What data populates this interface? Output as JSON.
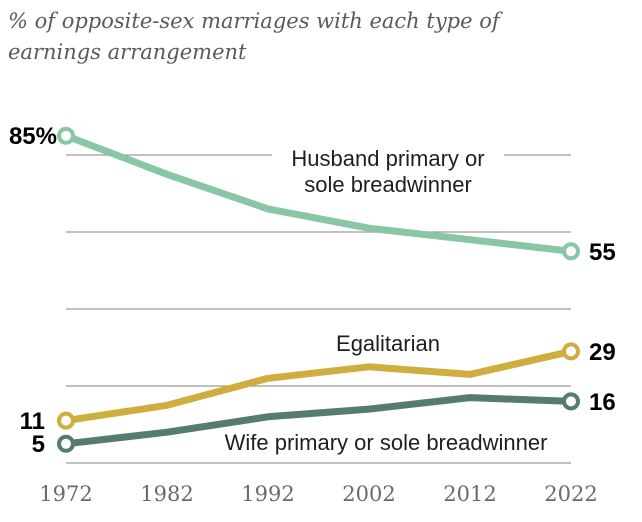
{
  "title": "% of opposite-sex marriages with each type of earnings arrangement",
  "theme": {
    "background": "#ffffff",
    "gridline_color": "#9a9a9a",
    "value_label_color": "#000000",
    "tick_label_color": "#6a6a6e",
    "annotation_color": "#1f1f21",
    "title_color": "#5a5a5e"
  },
  "chart_data": {
    "type": "line",
    "title": "% of opposite-sex marriages with each type of earnings arrangement",
    "x": [
      1972,
      1982,
      1992,
      2002,
      2012,
      2022
    ],
    "categories": [
      "1972",
      "1982",
      "1992",
      "2002",
      "2012",
      "2022"
    ],
    "ylim": [
      0,
      90
    ],
    "gridline_values": [
      0,
      20,
      40,
      60,
      80
    ],
    "grid": "horizontal",
    "legend_position": "inline-annotations",
    "marker_style": "open-circle-at-endpoints",
    "series": [
      {
        "name": "Husband primary or sole breadwinner",
        "color": "#87c7a6",
        "values": [
          85,
          75,
          66,
          61,
          58,
          55
        ],
        "start_label": "85%",
        "end_label": "55",
        "label_line1": "Husband primary or",
        "label_line2": "sole breadwinner"
      },
      {
        "name": "Egalitarian",
        "color": "#cfae3f",
        "values": [
          11,
          15,
          22,
          25,
          23,
          29
        ],
        "start_label": "11",
        "end_label": "29",
        "label_line1": "Egalitarian",
        "label_line2": ""
      },
      {
        "name": "Wife primary or sole breadwinner",
        "color": "#557c6c",
        "values": [
          5,
          8,
          12,
          14,
          17,
          16
        ],
        "start_label": "5",
        "end_label": "16",
        "label_line1": "Wife primary or sole breadwinner",
        "label_line2": ""
      }
    ]
  }
}
